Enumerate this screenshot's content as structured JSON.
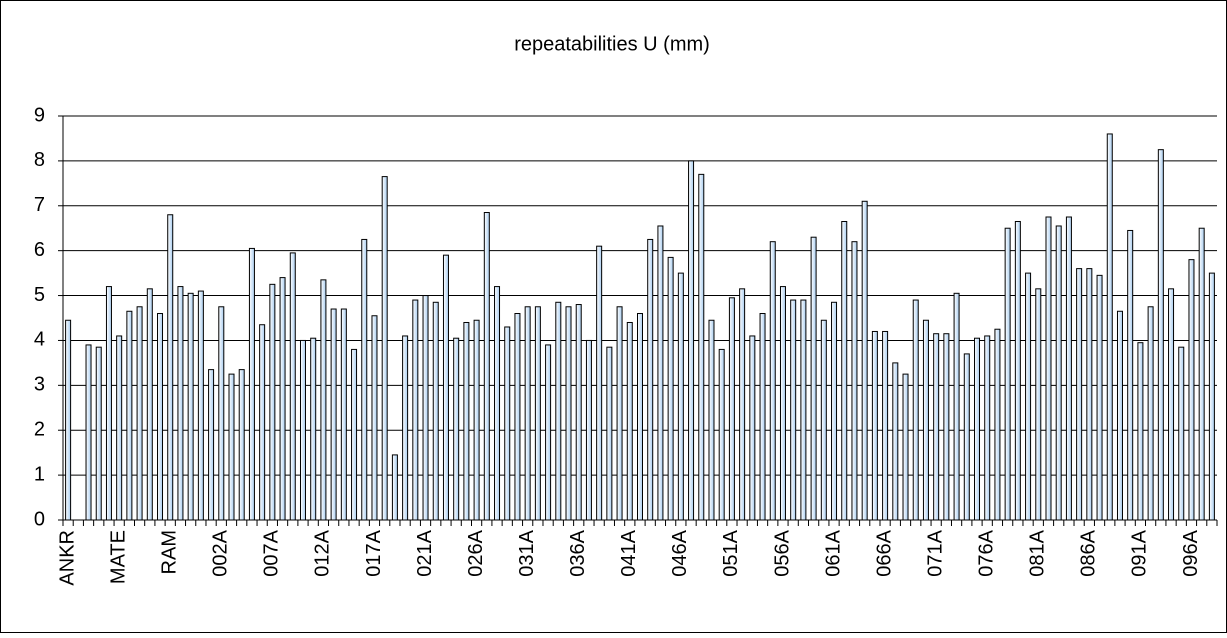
{
  "chart_data": {
    "type": "bar",
    "title": "repeatabilities U (mm)",
    "categories": [
      "ANKR",
      null,
      null,
      null,
      null,
      "MATE",
      null,
      null,
      null,
      null,
      "RAM",
      null,
      null,
      null,
      null,
      "002A",
      null,
      null,
      null,
      null,
      "007A",
      null,
      null,
      null,
      null,
      "012A",
      null,
      null,
      null,
      null,
      "017A",
      null,
      null,
      null,
      null,
      "021A",
      null,
      null,
      null,
      null,
      "026A",
      null,
      null,
      null,
      null,
      "031A",
      null,
      null,
      null,
      null,
      "036A",
      null,
      null,
      null,
      null,
      "041A",
      null,
      null,
      null,
      null,
      "046A",
      null,
      null,
      null,
      null,
      "051A",
      null,
      null,
      null,
      null,
      "056A",
      null,
      null,
      null,
      null,
      "061A",
      null,
      null,
      null,
      null,
      "066A",
      null,
      null,
      null,
      null,
      "071A",
      null,
      null,
      null,
      null,
      "076A",
      null,
      null,
      null,
      null,
      "081A",
      null,
      null,
      null,
      null,
      "086A",
      null,
      null,
      null,
      null,
      "091A",
      null,
      null,
      null,
      null,
      "096A",
      null,
      null
    ],
    "values": [
      4.45,
      null,
      3.9,
      3.85,
      5.2,
      4.1,
      4.65,
      4.75,
      5.15,
      4.6,
      6.8,
      5.2,
      5.05,
      5.1,
      3.35,
      4.75,
      3.25,
      3.35,
      6.05,
      4.35,
      5.25,
      5.4,
      5.95,
      4.0,
      4.05,
      5.35,
      4.7,
      4.7,
      3.8,
      6.25,
      4.55,
      7.65,
      1.45,
      4.1,
      4.9,
      5.0,
      4.85,
      5.9,
      4.05,
      4.4,
      4.45,
      6.85,
      5.2,
      4.3,
      4.6,
      4.75,
      4.75,
      3.9,
      4.85,
      4.75,
      4.8,
      4.0,
      6.1,
      3.85,
      4.75,
      4.4,
      4.6,
      6.25,
      6.55,
      5.85,
      5.5,
      8.0,
      7.7,
      4.45,
      3.8,
      4.95,
      5.15,
      4.1,
      4.6,
      6.2,
      5.2,
      4.9,
      4.9,
      6.3,
      4.45,
      4.85,
      6.65,
      6.2,
      7.1,
      4.2,
      4.2,
      3.5,
      3.25,
      4.9,
      4.45,
      4.15,
      4.15,
      5.05,
      3.7,
      4.05,
      4.1,
      4.25,
      6.5,
      6.65,
      5.5,
      5.15,
      6.75,
      6.55,
      6.75,
      5.6,
      5.6,
      5.45,
      8.6,
      4.65,
      6.45,
      3.95,
      4.75,
      8.25,
      5.15,
      3.85,
      5.8,
      6.5,
      5.5
    ],
    "color": "#cfe6fa",
    "ylim": [
      0,
      9
    ],
    "yticks": [
      0,
      1,
      2,
      3,
      4,
      5,
      6,
      7,
      8,
      9
    ],
    "grid": true
  }
}
